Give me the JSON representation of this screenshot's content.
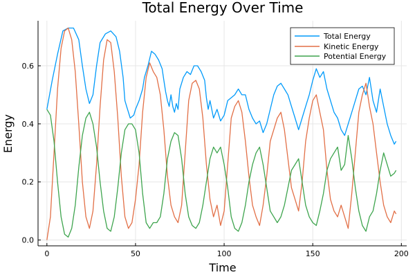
{
  "chart_data": {
    "type": "line",
    "title": "Total Energy Over Time",
    "xlabel": "Time",
    "ylabel": "Energy",
    "xlim": [
      -5,
      203
    ],
    "ylim": [
      -0.02,
      0.755
    ],
    "x_ticks": [
      0,
      50,
      100,
      150,
      200
    ],
    "y_ticks": [
      0.0,
      0.2,
      0.4,
      0.6
    ],
    "x_tick_labels": [
      "0",
      "50",
      "100",
      "150",
      "200"
    ],
    "y_tick_labels": [
      "0.0",
      "0.2",
      "0.4",
      "0.6"
    ],
    "grid": true,
    "legend_position": "top-right",
    "series": [
      {
        "name": "Total Energy",
        "color": "#009AFA",
        "points": [
          [
            0,
            0.45
          ],
          [
            3,
            0.55
          ],
          [
            6,
            0.64
          ],
          [
            9,
            0.72
          ],
          [
            12,
            0.73
          ],
          [
            15,
            0.73
          ],
          [
            18,
            0.69
          ],
          [
            20,
            0.6
          ],
          [
            22,
            0.52
          ],
          [
            24,
            0.47
          ],
          [
            26,
            0.5
          ],
          [
            28,
            0.6
          ],
          [
            30,
            0.68
          ],
          [
            33,
            0.71
          ],
          [
            36,
            0.72
          ],
          [
            39,
            0.7
          ],
          [
            41,
            0.65
          ],
          [
            43,
            0.56
          ],
          [
            44,
            0.48
          ],
          [
            45,
            0.46
          ],
          [
            47,
            0.42
          ],
          [
            49,
            0.43
          ],
          [
            50,
            0.45
          ],
          [
            52,
            0.48
          ],
          [
            54,
            0.52
          ],
          [
            55,
            0.56
          ],
          [
            57,
            0.6
          ],
          [
            59,
            0.65
          ],
          [
            61,
            0.64
          ],
          [
            63,
            0.62
          ],
          [
            65,
            0.59
          ],
          [
            66,
            0.55
          ],
          [
            67,
            0.51
          ],
          [
            68,
            0.48
          ],
          [
            69,
            0.46
          ],
          [
            70,
            0.5
          ],
          [
            71,
            0.46
          ],
          [
            72,
            0.44
          ],
          [
            73,
            0.47
          ],
          [
            74,
            0.45
          ],
          [
            75,
            0.52
          ],
          [
            77,
            0.56
          ],
          [
            79,
            0.58
          ],
          [
            81,
            0.57
          ],
          [
            83,
            0.6
          ],
          [
            85,
            0.6
          ],
          [
            87,
            0.58
          ],
          [
            89,
            0.55
          ],
          [
            90,
            0.49
          ],
          [
            91,
            0.45
          ],
          [
            92,
            0.48
          ],
          [
            94,
            0.42
          ],
          [
            96,
            0.45
          ],
          [
            98,
            0.41
          ],
          [
            100,
            0.43
          ],
          [
            102,
            0.48
          ],
          [
            104,
            0.49
          ],
          [
            106,
            0.5
          ],
          [
            108,
            0.52
          ],
          [
            110,
            0.5
          ],
          [
            112,
            0.5
          ],
          [
            114,
            0.45
          ],
          [
            116,
            0.42
          ],
          [
            118,
            0.4
          ],
          [
            120,
            0.41
          ],
          [
            122,
            0.37
          ],
          [
            124,
            0.4
          ],
          [
            126,
            0.45
          ],
          [
            128,
            0.5
          ],
          [
            130,
            0.53
          ],
          [
            132,
            0.54
          ],
          [
            134,
            0.52
          ],
          [
            136,
            0.5
          ],
          [
            138,
            0.46
          ],
          [
            140,
            0.42
          ],
          [
            142,
            0.38
          ],
          [
            144,
            0.42
          ],
          [
            146,
            0.46
          ],
          [
            148,
            0.5
          ],
          [
            150,
            0.55
          ],
          [
            152,
            0.59
          ],
          [
            154,
            0.56
          ],
          [
            156,
            0.58
          ],
          [
            158,
            0.52
          ],
          [
            160,
            0.48
          ],
          [
            162,
            0.44
          ],
          [
            164,
            0.42
          ],
          [
            166,
            0.38
          ],
          [
            168,
            0.36
          ],
          [
            170,
            0.4
          ],
          [
            172,
            0.44
          ],
          [
            174,
            0.48
          ],
          [
            176,
            0.52
          ],
          [
            178,
            0.53
          ],
          [
            180,
            0.5
          ],
          [
            182,
            0.56
          ],
          [
            184,
            0.48
          ],
          [
            186,
            0.44
          ],
          [
            188,
            0.52
          ],
          [
            190,
            0.46
          ],
          [
            192,
            0.4
          ],
          [
            194,
            0.36
          ],
          [
            196,
            0.33
          ],
          [
            197,
            0.34
          ]
        ]
      },
      {
        "name": "Kinetic Energy",
        "color": "#E26F46",
        "points": [
          [
            0,
            0.0
          ],
          [
            2,
            0.08
          ],
          [
            4,
            0.3
          ],
          [
            6,
            0.52
          ],
          [
            8,
            0.66
          ],
          [
            10,
            0.72
          ],
          [
            12,
            0.73
          ],
          [
            14,
            0.69
          ],
          [
            16,
            0.58
          ],
          [
            18,
            0.4
          ],
          [
            20,
            0.2
          ],
          [
            22,
            0.08
          ],
          [
            24,
            0.04
          ],
          [
            26,
            0.1
          ],
          [
            28,
            0.26
          ],
          [
            30,
            0.46
          ],
          [
            32,
            0.62
          ],
          [
            34,
            0.69
          ],
          [
            36,
            0.68
          ],
          [
            38,
            0.58
          ],
          [
            40,
            0.42
          ],
          [
            42,
            0.22
          ],
          [
            44,
            0.08
          ],
          [
            46,
            0.04
          ],
          [
            48,
            0.06
          ],
          [
            50,
            0.14
          ],
          [
            52,
            0.26
          ],
          [
            54,
            0.44
          ],
          [
            56,
            0.56
          ],
          [
            58,
            0.61
          ],
          [
            60,
            0.58
          ],
          [
            62,
            0.56
          ],
          [
            64,
            0.5
          ],
          [
            66,
            0.38
          ],
          [
            68,
            0.22
          ],
          [
            70,
            0.12
          ],
          [
            72,
            0.08
          ],
          [
            74,
            0.06
          ],
          [
            76,
            0.12
          ],
          [
            78,
            0.3
          ],
          [
            80,
            0.48
          ],
          [
            82,
            0.54
          ],
          [
            84,
            0.55
          ],
          [
            86,
            0.52
          ],
          [
            88,
            0.42
          ],
          [
            90,
            0.26
          ],
          [
            92,
            0.14
          ],
          [
            94,
            0.08
          ],
          [
            96,
            0.12
          ],
          [
            98,
            0.05
          ],
          [
            100,
            0.1
          ],
          [
            102,
            0.26
          ],
          [
            104,
            0.42
          ],
          [
            106,
            0.46
          ],
          [
            108,
            0.48
          ],
          [
            110,
            0.44
          ],
          [
            112,
            0.34
          ],
          [
            114,
            0.22
          ],
          [
            116,
            0.12
          ],
          [
            118,
            0.08
          ],
          [
            120,
            0.05
          ],
          [
            122,
            0.12
          ],
          [
            124,
            0.22
          ],
          [
            126,
            0.34
          ],
          [
            128,
            0.38
          ],
          [
            130,
            0.42
          ],
          [
            132,
            0.44
          ],
          [
            134,
            0.38
          ],
          [
            136,
            0.28
          ],
          [
            138,
            0.18
          ],
          [
            140,
            0.14
          ],
          [
            142,
            0.1
          ],
          [
            144,
            0.2
          ],
          [
            146,
            0.34
          ],
          [
            148,
            0.42
          ],
          [
            150,
            0.48
          ],
          [
            152,
            0.5
          ],
          [
            154,
            0.44
          ],
          [
            156,
            0.38
          ],
          [
            158,
            0.24
          ],
          [
            160,
            0.14
          ],
          [
            162,
            0.1
          ],
          [
            164,
            0.08
          ],
          [
            166,
            0.12
          ],
          [
            168,
            0.08
          ],
          [
            170,
            0.04
          ],
          [
            172,
            0.16
          ],
          [
            174,
            0.3
          ],
          [
            176,
            0.44
          ],
          [
            178,
            0.5
          ],
          [
            180,
            0.54
          ],
          [
            182,
            0.46
          ],
          [
            184,
            0.4
          ],
          [
            186,
            0.3
          ],
          [
            188,
            0.2
          ],
          [
            190,
            0.12
          ],
          [
            192,
            0.08
          ],
          [
            194,
            0.06
          ],
          [
            196,
            0.1
          ],
          [
            197,
            0.09
          ]
        ]
      },
      {
        "name": "Potential Energy",
        "color": "#3DA44D",
        "points": [
          [
            0,
            0.45
          ],
          [
            2,
            0.43
          ],
          [
            4,
            0.34
          ],
          [
            6,
            0.2
          ],
          [
            8,
            0.08
          ],
          [
            10,
            0.02
          ],
          [
            12,
            0.01
          ],
          [
            14,
            0.04
          ],
          [
            16,
            0.12
          ],
          [
            18,
            0.25
          ],
          [
            20,
            0.36
          ],
          [
            22,
            0.42
          ],
          [
            24,
            0.44
          ],
          [
            26,
            0.4
          ],
          [
            28,
            0.32
          ],
          [
            30,
            0.2
          ],
          [
            32,
            0.1
          ],
          [
            34,
            0.04
          ],
          [
            36,
            0.03
          ],
          [
            38,
            0.08
          ],
          [
            40,
            0.18
          ],
          [
            42,
            0.3
          ],
          [
            44,
            0.38
          ],
          [
            46,
            0.4
          ],
          [
            48,
            0.4
          ],
          [
            50,
            0.38
          ],
          [
            52,
            0.3
          ],
          [
            54,
            0.16
          ],
          [
            56,
            0.06
          ],
          [
            58,
            0.04
          ],
          [
            60,
            0.06
          ],
          [
            62,
            0.06
          ],
          [
            64,
            0.08
          ],
          [
            66,
            0.16
          ],
          [
            68,
            0.28
          ],
          [
            70,
            0.34
          ],
          [
            72,
            0.37
          ],
          [
            74,
            0.36
          ],
          [
            76,
            0.28
          ],
          [
            78,
            0.16
          ],
          [
            80,
            0.08
          ],
          [
            82,
            0.05
          ],
          [
            84,
            0.04
          ],
          [
            86,
            0.06
          ],
          [
            88,
            0.12
          ],
          [
            90,
            0.2
          ],
          [
            92,
            0.28
          ],
          [
            94,
            0.32
          ],
          [
            96,
            0.3
          ],
          [
            98,
            0.32
          ],
          [
            100,
            0.26
          ],
          [
            102,
            0.18
          ],
          [
            104,
            0.08
          ],
          [
            106,
            0.04
          ],
          [
            108,
            0.03
          ],
          [
            110,
            0.06
          ],
          [
            112,
            0.12
          ],
          [
            114,
            0.2
          ],
          [
            116,
            0.26
          ],
          [
            118,
            0.3
          ],
          [
            120,
            0.32
          ],
          [
            122,
            0.26
          ],
          [
            124,
            0.18
          ],
          [
            126,
            0.1
          ],
          [
            128,
            0.08
          ],
          [
            130,
            0.06
          ],
          [
            132,
            0.08
          ],
          [
            134,
            0.12
          ],
          [
            136,
            0.18
          ],
          [
            138,
            0.24
          ],
          [
            140,
            0.26
          ],
          [
            142,
            0.28
          ],
          [
            144,
            0.2
          ],
          [
            146,
            0.12
          ],
          [
            148,
            0.08
          ],
          [
            150,
            0.06
          ],
          [
            152,
            0.05
          ],
          [
            154,
            0.1
          ],
          [
            156,
            0.16
          ],
          [
            158,
            0.24
          ],
          [
            160,
            0.28
          ],
          [
            162,
            0.3
          ],
          [
            164,
            0.32
          ],
          [
            166,
            0.24
          ],
          [
            168,
            0.26
          ],
          [
            170,
            0.36
          ],
          [
            172,
            0.28
          ],
          [
            174,
            0.18
          ],
          [
            176,
            0.1
          ],
          [
            178,
            0.05
          ],
          [
            180,
            0.03
          ],
          [
            182,
            0.08
          ],
          [
            184,
            0.1
          ],
          [
            186,
            0.16
          ],
          [
            188,
            0.24
          ],
          [
            190,
            0.3
          ],
          [
            192,
            0.26
          ],
          [
            194,
            0.22
          ],
          [
            196,
            0.23
          ],
          [
            197,
            0.24
          ]
        ]
      }
    ]
  }
}
